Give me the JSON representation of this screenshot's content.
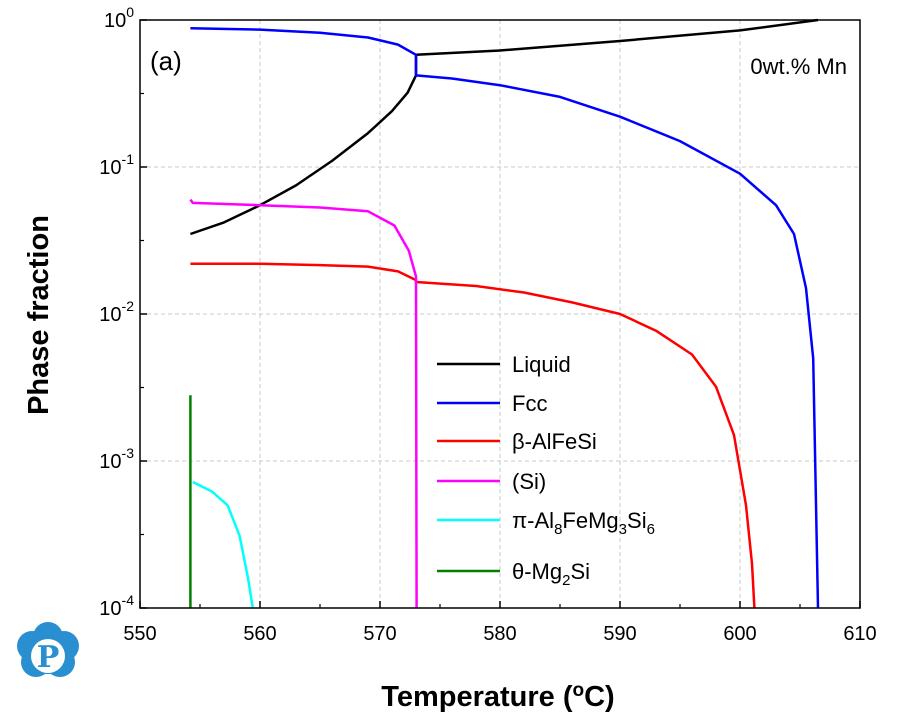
{
  "chart_data": {
    "type": "line",
    "xlabel": "Temperature (°C)",
    "ylabel": "Phase fraction",
    "xlim": [
      550,
      610
    ],
    "ylim": [
      0.0001,
      1
    ],
    "yscale": "log",
    "grid": true,
    "x_ticks": [
      "550",
      "560",
      "570",
      "580",
      "590",
      "600",
      "610"
    ],
    "y_ticks": [
      {
        "base": "10",
        "exp": "0",
        "value": 1
      },
      {
        "base": "10",
        "exp": "-1",
        "value": 0.1
      },
      {
        "base": "10",
        "exp": "-2",
        "value": 0.01
      },
      {
        "base": "10",
        "exp": "-3",
        "value": 0.001
      },
      {
        "base": "10",
        "exp": "-4",
        "value": 0.0001
      }
    ],
    "annotations": {
      "panel_label": "(a)",
      "composition": "0wt.% Mn"
    },
    "legend_position": "bottom-center",
    "series": [
      {
        "name": "Liquid",
        "color": "#000000",
        "points": [
          [
            554.2,
            0.035
          ],
          [
            557,
            0.042
          ],
          [
            560,
            0.055
          ],
          [
            563,
            0.075
          ],
          [
            566,
            0.11
          ],
          [
            569,
            0.17
          ],
          [
            571,
            0.24
          ],
          [
            572.3,
            0.32
          ],
          [
            573,
            0.42
          ],
          [
            573,
            0.58
          ],
          [
            580,
            0.62
          ],
          [
            590,
            0.72
          ],
          [
            600,
            0.85
          ],
          [
            606.5,
            1.0
          ]
        ]
      },
      {
        "name": "Fcc",
        "color": "#0000ff",
        "points": [
          [
            554.2,
            0.88
          ],
          [
            560,
            0.86
          ],
          [
            565,
            0.82
          ],
          [
            569,
            0.76
          ],
          [
            571.5,
            0.68
          ],
          [
            573,
            0.58
          ],
          [
            573,
            0.42
          ],
          [
            576,
            0.4
          ],
          [
            580,
            0.36
          ],
          [
            585,
            0.3
          ],
          [
            590,
            0.22
          ],
          [
            595,
            0.15
          ],
          [
            600,
            0.09
          ],
          [
            603,
            0.055
          ],
          [
            604.5,
            0.035
          ],
          [
            605.5,
            0.015
          ],
          [
            606.1,
            0.005
          ],
          [
            606.5,
            0.0001
          ]
        ]
      },
      {
        "name": "β-AlFeSi",
        "label": {
          "pre": "β-AlFeSi",
          "parts": []
        },
        "color": "#ff0000",
        "points": [
          [
            554.2,
            0.022
          ],
          [
            560,
            0.022
          ],
          [
            565,
            0.0215
          ],
          [
            569,
            0.021
          ],
          [
            571.5,
            0.0195
          ],
          [
            573,
            0.017
          ],
          [
            573,
            0.0165
          ],
          [
            578,
            0.0155
          ],
          [
            582,
            0.014
          ],
          [
            586,
            0.012
          ],
          [
            590,
            0.01
          ],
          [
            593,
            0.0077
          ],
          [
            596,
            0.0053
          ],
          [
            598,
            0.0032
          ],
          [
            599.5,
            0.0015
          ],
          [
            600.5,
            0.0005
          ],
          [
            601,
            0.0002
          ],
          [
            601.2,
            0.0001
          ]
        ]
      },
      {
        "name": "(Si)",
        "color": "#ff00ff",
        "points": [
          [
            554.2,
            0.06
          ],
          [
            554.4,
            0.057
          ],
          [
            560,
            0.055
          ],
          [
            565,
            0.053
          ],
          [
            569,
            0.05
          ],
          [
            571.2,
            0.04
          ],
          [
            572.4,
            0.027
          ],
          [
            573,
            0.018
          ],
          [
            573.05,
            0.0001
          ]
        ]
      },
      {
        "name": "π-Al8FeMg3Si6",
        "label": {
          "pre": "π-Al",
          "parts": [
            [
              "8",
              "Fe"
            ],
            [
              "Mg",
              ""
            ],
            [
              "3",
              "Si"
            ],
            [
              "6",
              ""
            ]
          ]
        },
        "color": "#00ffff",
        "points": [
          [
            554.4,
            0.00072
          ],
          [
            556,
            0.00062
          ],
          [
            557.3,
            0.0005
          ],
          [
            558.3,
            0.00031
          ],
          [
            559,
            0.00016
          ],
          [
            559.4,
            0.0001
          ]
        ]
      },
      {
        "name": "θ-Mg2Si",
        "color": "#008000",
        "points": [
          [
            554.2,
            0.0028
          ],
          [
            554.2,
            0.0001
          ]
        ]
      }
    ],
    "legend_labels": {
      "liquid": "Liquid",
      "fcc": "Fcc",
      "beta": "β-AlFeSi",
      "si": "(Si)",
      "pi_pre": "π-Al",
      "pi_8": "8",
      "pi_fe": "FeMg",
      "pi_3": "3",
      "pi_si": "Si",
      "pi_6": "6",
      "theta_pre": "θ-Mg",
      "theta_2": "2",
      "theta_si": "Si"
    }
  },
  "logo": {
    "letter": "P",
    "color": "#2a8fd0"
  }
}
